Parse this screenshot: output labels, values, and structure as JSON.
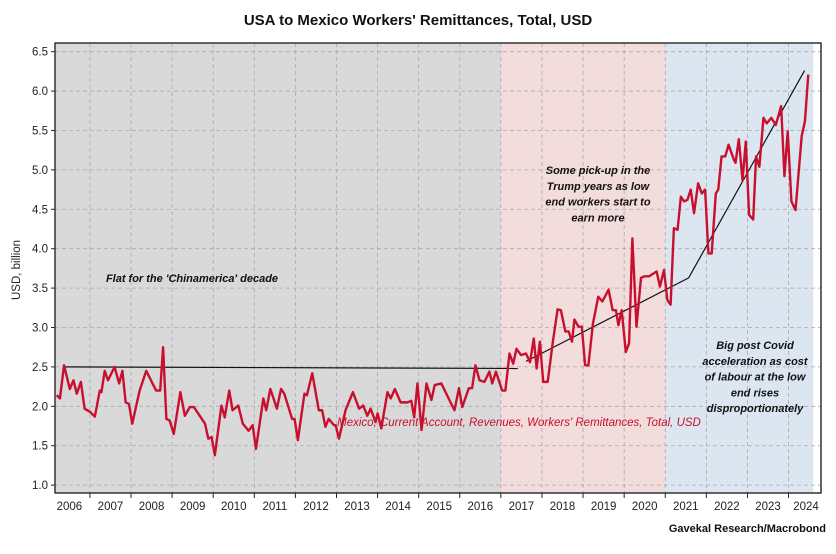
{
  "chart_data": {
    "type": "line",
    "title": "USA to Mexico Workers' Remittances, Total, USD",
    "ylabel": "USD, billion",
    "xlabel": "",
    "xlim": [
      2006.15,
      2024.79
    ],
    "ylim": [
      0.9,
      6.61
    ],
    "yticks": [
      1.0,
      1.5,
      2.0,
      2.5,
      3.0,
      3.5,
      4.0,
      4.5,
      5.0,
      5.5,
      6.0,
      6.5
    ],
    "xtick_labels": [
      "2006",
      "2007",
      "2008",
      "2009",
      "2010",
      "2011",
      "2012",
      "2013",
      "2014",
      "2015",
      "2016",
      "2017",
      "2018",
      "2019",
      "2020",
      "2021",
      "2022",
      "2023",
      "2024"
    ],
    "grid": true,
    "regions": [
      {
        "from": 2006.15,
        "to": 2017.0,
        "color": "#d9d9d9"
      },
      {
        "from": 2017.0,
        "to": 2021.0,
        "color": "#f2dcdc"
      },
      {
        "from": 2021.0,
        "to": 2024.6,
        "color": "#dce6f1"
      }
    ],
    "series": [
      {
        "name": "Mexico, Current Account, Revenues, Workers' Remittances, Total, USD",
        "color": "#c8102e",
        "points": [
          [
            2006.19,
            2.14
          ],
          [
            2006.27,
            2.1
          ],
          [
            2006.37,
            2.52
          ],
          [
            2006.51,
            2.22
          ],
          [
            2006.6,
            2.33
          ],
          [
            2006.68,
            2.16
          ],
          [
            2006.78,
            2.31
          ],
          [
            2006.87,
            1.97
          ],
          [
            2007.0,
            1.93
          ],
          [
            2007.12,
            1.87
          ],
          [
            2007.24,
            2.2
          ],
          [
            2007.28,
            2.18
          ],
          [
            2007.36,
            2.45
          ],
          [
            2007.44,
            2.33
          ],
          [
            2007.6,
            2.5
          ],
          [
            2007.71,
            2.29
          ],
          [
            2007.79,
            2.45
          ],
          [
            2007.87,
            2.05
          ],
          [
            2007.95,
            2.03
          ],
          [
            2008.03,
            1.78
          ],
          [
            2008.21,
            2.2
          ],
          [
            2008.37,
            2.45
          ],
          [
            2008.61,
            2.2
          ],
          [
            2008.71,
            2.2
          ],
          [
            2008.78,
            2.75
          ],
          [
            2008.86,
            1.84
          ],
          [
            2008.94,
            1.82
          ],
          [
            2009.04,
            1.65
          ],
          [
            2009.2,
            2.18
          ],
          [
            2009.31,
            1.88
          ],
          [
            2009.43,
            1.99
          ],
          [
            2009.53,
            1.99
          ],
          [
            2009.8,
            1.78
          ],
          [
            2009.88,
            1.59
          ],
          [
            2009.96,
            1.61
          ],
          [
            2010.04,
            1.38
          ],
          [
            2010.2,
            2.01
          ],
          [
            2010.28,
            1.86
          ],
          [
            2010.39,
            2.2
          ],
          [
            2010.47,
            1.95
          ],
          [
            2010.61,
            2.01
          ],
          [
            2010.72,
            1.78
          ],
          [
            2010.86,
            1.69
          ],
          [
            2010.96,
            1.76
          ],
          [
            2011.04,
            1.46
          ],
          [
            2011.22,
            2.1
          ],
          [
            2011.29,
            1.95
          ],
          [
            2011.39,
            2.22
          ],
          [
            2011.55,
            1.97
          ],
          [
            2011.65,
            2.22
          ],
          [
            2011.73,
            2.16
          ],
          [
            2011.92,
            1.84
          ],
          [
            2011.98,
            1.84
          ],
          [
            2012.06,
            1.57
          ],
          [
            2012.22,
            2.16
          ],
          [
            2012.28,
            2.14
          ],
          [
            2012.41,
            2.42
          ],
          [
            2012.57,
            1.95
          ],
          [
            2012.65,
            1.95
          ],
          [
            2012.73,
            1.74
          ],
          [
            2012.81,
            1.84
          ],
          [
            2012.94,
            1.76
          ],
          [
            2012.98,
            1.76
          ],
          [
            2013.06,
            1.59
          ],
          [
            2013.22,
            1.95
          ],
          [
            2013.4,
            2.18
          ],
          [
            2013.55,
            1.97
          ],
          [
            2013.65,
            2.01
          ],
          [
            2013.75,
            1.88
          ],
          [
            2013.83,
            1.97
          ],
          [
            2013.95,
            1.8
          ],
          [
            2014.0,
            1.91
          ],
          [
            2014.09,
            1.72
          ],
          [
            2014.24,
            2.18
          ],
          [
            2014.32,
            2.1
          ],
          [
            2014.42,
            2.22
          ],
          [
            2014.56,
            2.05
          ],
          [
            2014.73,
            2.05
          ],
          [
            2014.82,
            2.07
          ],
          [
            2014.89,
            1.86
          ],
          [
            2014.97,
            2.29
          ],
          [
            2015.07,
            1.7
          ],
          [
            2015.19,
            2.29
          ],
          [
            2015.31,
            2.08
          ],
          [
            2015.39,
            2.27
          ],
          [
            2015.55,
            2.29
          ],
          [
            2015.71,
            2.12
          ],
          [
            2015.87,
            1.95
          ],
          [
            2015.98,
            2.23
          ],
          [
            2016.06,
            1.99
          ],
          [
            2016.22,
            2.23
          ],
          [
            2016.3,
            2.23
          ],
          [
            2016.38,
            2.52
          ],
          [
            2016.48,
            2.33
          ],
          [
            2016.6,
            2.31
          ],
          [
            2016.72,
            2.44
          ],
          [
            2016.79,
            2.29
          ],
          [
            2016.88,
            2.44
          ],
          [
            2017.03,
            2.2
          ],
          [
            2017.11,
            2.2
          ],
          [
            2017.21,
            2.67
          ],
          [
            2017.3,
            2.54
          ],
          [
            2017.38,
            2.73
          ],
          [
            2017.49,
            2.65
          ],
          [
            2017.61,
            2.67
          ],
          [
            2017.71,
            2.56
          ],
          [
            2017.8,
            2.86
          ],
          [
            2017.87,
            2.48
          ],
          [
            2017.95,
            2.82
          ],
          [
            2018.03,
            2.31
          ],
          [
            2018.14,
            2.31
          ],
          [
            2018.26,
            2.8
          ],
          [
            2018.38,
            3.23
          ],
          [
            2018.46,
            3.22
          ],
          [
            2018.57,
            2.95
          ],
          [
            2018.65,
            2.95
          ],
          [
            2018.73,
            2.82
          ],
          [
            2018.79,
            3.1
          ],
          [
            2018.89,
            3.01
          ],
          [
            2018.97,
            3.01
          ],
          [
            2019.05,
            2.52
          ],
          [
            2019.13,
            2.52
          ],
          [
            2019.24,
            3.05
          ],
          [
            2019.37,
            3.39
          ],
          [
            2019.47,
            3.33
          ],
          [
            2019.62,
            3.48
          ],
          [
            2019.72,
            3.22
          ],
          [
            2019.8,
            3.22
          ],
          [
            2019.86,
            3.03
          ],
          [
            2019.94,
            3.22
          ],
          [
            2020.04,
            2.69
          ],
          [
            2020.12,
            2.8
          ],
          [
            2020.2,
            4.13
          ],
          [
            2020.3,
            3.01
          ],
          [
            2020.41,
            3.63
          ],
          [
            2020.49,
            3.65
          ],
          [
            2020.61,
            3.65
          ],
          [
            2020.79,
            3.71
          ],
          [
            2020.87,
            3.52
          ],
          [
            2020.97,
            3.73
          ],
          [
            2021.05,
            3.35
          ],
          [
            2021.13,
            3.29
          ],
          [
            2021.21,
            4.26
          ],
          [
            2021.3,
            4.24
          ],
          [
            2021.38,
            4.66
          ],
          [
            2021.46,
            4.6
          ],
          [
            2021.54,
            4.62
          ],
          [
            2021.62,
            4.75
          ],
          [
            2021.7,
            4.45
          ],
          [
            2021.8,
            4.83
          ],
          [
            2021.89,
            4.7
          ],
          [
            2021.97,
            4.75
          ],
          [
            2022.05,
            3.94
          ],
          [
            2022.13,
            3.94
          ],
          [
            2022.23,
            4.7
          ],
          [
            2022.29,
            4.75
          ],
          [
            2022.37,
            5.17
          ],
          [
            2022.46,
            5.17
          ],
          [
            2022.54,
            5.32
          ],
          [
            2022.67,
            5.13
          ],
          [
            2022.71,
            5.09
          ],
          [
            2022.79,
            5.39
          ],
          [
            2022.88,
            4.87
          ],
          [
            2022.96,
            5.36
          ],
          [
            2023.04,
            4.43
          ],
          [
            2023.14,
            4.37
          ],
          [
            2023.21,
            5.17
          ],
          [
            2023.29,
            5.04
          ],
          [
            2023.39,
            5.66
          ],
          [
            2023.47,
            5.59
          ],
          [
            2023.58,
            5.66
          ],
          [
            2023.69,
            5.57
          ],
          [
            2023.82,
            5.81
          ],
          [
            2023.9,
            4.92
          ],
          [
            2023.98,
            5.49
          ],
          [
            2024.07,
            4.6
          ],
          [
            2024.17,
            4.49
          ],
          [
            2024.32,
            5.43
          ],
          [
            2024.4,
            5.62
          ],
          [
            2024.48,
            6.21
          ]
        ]
      }
    ],
    "trend_lines": [
      {
        "points": [
          [
            2006.35,
            2.5
          ],
          [
            2017.41,
            2.48
          ]
        ],
        "color": "#111111"
      },
      {
        "points": [
          [
            2017.61,
            2.57
          ],
          [
            2021.57,
            3.63
          ]
        ],
        "color": "#111111"
      },
      {
        "points": [
          [
            2021.57,
            3.63
          ],
          [
            2024.39,
            6.26
          ]
        ],
        "color": "#111111"
      }
    ],
    "annotations": {
      "flat": [
        "Flat for the 'Chinamerica' decade"
      ],
      "trump": [
        "Some pick-up in the",
        "Trump years as low",
        "end workers start to",
        "earn more"
      ],
      "covid": [
        "Big post Covid",
        "acceleration as cost",
        "of labour at the low",
        "end rises",
        "disproportionately"
      ]
    },
    "series_label": "Mexico, Current Account, Revenues, Workers' Remittances, Total, USD",
    "source": "Gavekal Research/Macrobond"
  }
}
